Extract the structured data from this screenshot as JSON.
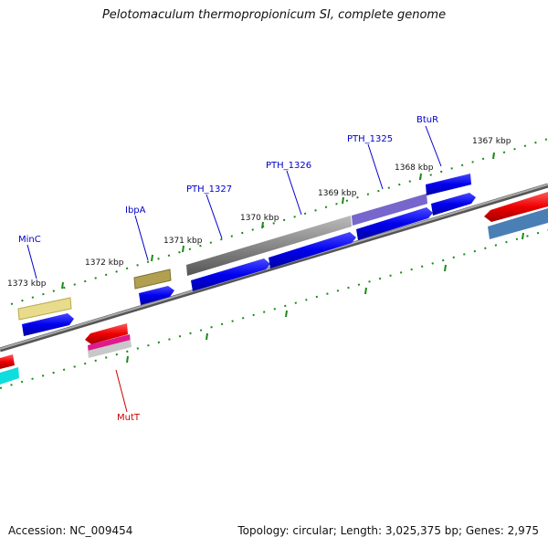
{
  "title": "Pelotomaculum thermopropionicum SI, complete genome",
  "footer": {
    "accession": "Accession: NC_009454",
    "info": "Topology: circular; Length: 3,025,375 bp; Genes: 2,975"
  },
  "scale_labels": [
    "1373 kbp",
    "1372 kbp",
    "1371 kbp",
    "1370 kbp",
    "1369 kbp",
    "1368 kbp",
    "1367 kbp"
  ],
  "gene_labels": [
    {
      "text": "MinC",
      "color": "#0000cc"
    },
    {
      "text": "IbpA",
      "color": "#0000cc"
    },
    {
      "text": "PTH_1327",
      "color": "#0000cc"
    },
    {
      "text": "PTH_1326",
      "color": "#0000cc"
    },
    {
      "text": "PTH_1325",
      "color": "#0000cc"
    },
    {
      "text": "BtuR",
      "color": "#0000cc"
    },
    {
      "text": "MutT",
      "color": "#cc0000"
    }
  ],
  "colors": {
    "forward_cds": "#1010ee",
    "reverse_cds": "#ee1010",
    "backbone": "#808080",
    "ticks": "#1a8a1a",
    "minc": "#e8dc8c",
    "ibpa": "#b0a050",
    "pth_1327": "#555555",
    "pth_1325": "#7766cc",
    "magenta": "#e0198c",
    "cyan": "#10dddd",
    "steelblue": "#4a7fb5"
  }
}
